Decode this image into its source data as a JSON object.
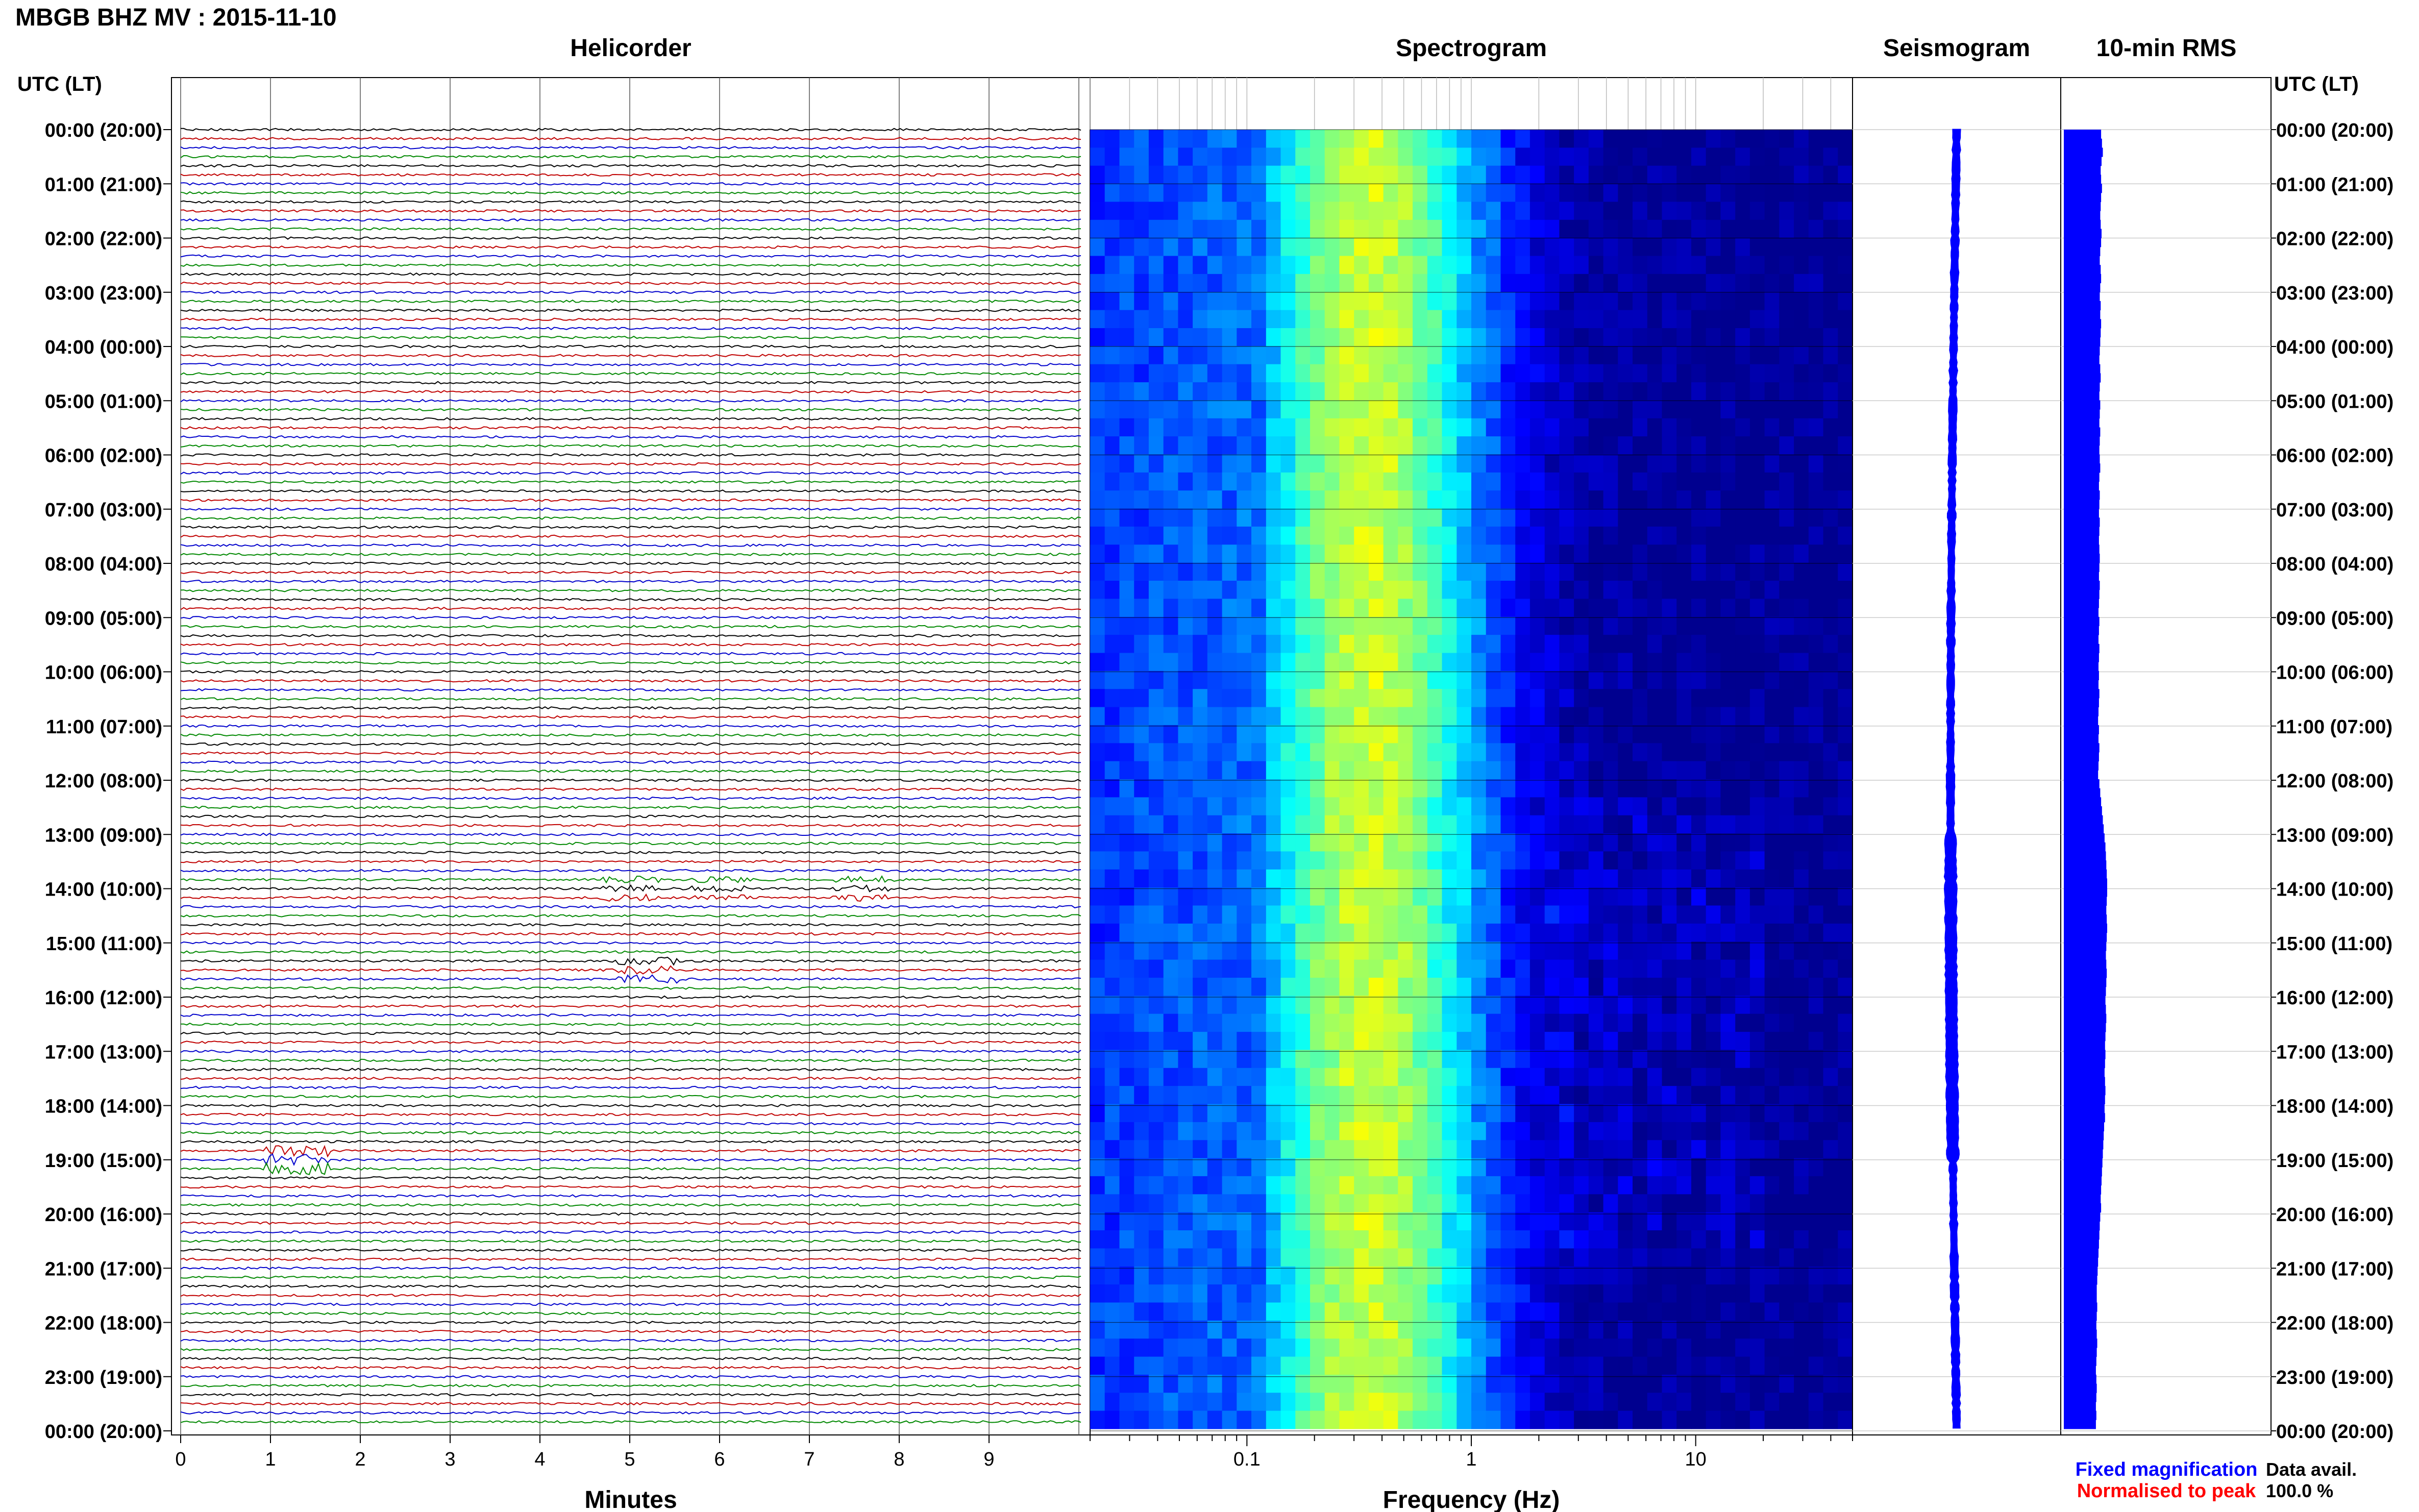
{
  "header": {
    "title": "MBGB BHZ MV : 2015-11-10"
  },
  "panels": {
    "helicorder": "Helicorder",
    "spectrogram": "Spectrogram",
    "seismogram": "Seismogram",
    "rms": "10-min RMS"
  },
  "axes": {
    "time_label": "UTC (LT)",
    "minutes_label": "Minutes",
    "frequency_label": "Frequency (Hz)"
  },
  "legend": {
    "fixed": "Fixed magnification",
    "normalised": "Normalised to peak",
    "fixed_color": "#0000ff",
    "normalised_color": "#ff0000"
  },
  "data_availability": {
    "label": "Data avail.",
    "value": "100.0 %"
  },
  "chart_data": {
    "type": "line",
    "time_ticks": [
      "00:00 (20:00)",
      "01:00 (21:00)",
      "02:00 (22:00)",
      "03:00 (23:00)",
      "04:00 (00:00)",
      "05:00 (01:00)",
      "06:00 (02:00)",
      "07:00 (03:00)",
      "08:00 (04:00)",
      "09:00 (05:00)",
      "10:00 (06:00)",
      "11:00 (07:00)",
      "12:00 (08:00)",
      "13:00 (09:00)",
      "14:00 (10:00)",
      "15:00 (11:00)",
      "16:00 (12:00)",
      "17:00 (13:00)",
      "18:00 (14:00)",
      "19:00 (15:00)",
      "20:00 (16:00)",
      "21:00 (17:00)",
      "22:00 (18:00)",
      "23:00 (19:00)",
      "00:00 (20:00)"
    ],
    "minute_ticks": [
      "0",
      "1",
      "2",
      "3",
      "4",
      "5",
      "6",
      "7",
      "8",
      "9"
    ],
    "frequency_ticks": [
      "0.1",
      "1",
      "10"
    ],
    "frequency_range_hz": [
      0.02,
      50
    ],
    "helicorder": {
      "trace_colors": [
        "#000000",
        "#c00000",
        "#0000cc",
        "#008800"
      ],
      "line_minutes": 10,
      "lines": 144,
      "events": [
        {
          "hour": 14.0,
          "minute": 5.0,
          "amp": 3.0
        },
        {
          "hour": 14.0,
          "minute": 6.0,
          "amp": 2.5
        },
        {
          "hour": 14.0,
          "minute": 7.6,
          "amp": 3.0
        },
        {
          "hour": 15.5,
          "minute": 5.2,
          "amp": 3.5
        },
        {
          "hour": 19.0,
          "minute": 1.3,
          "amp": 5.0
        }
      ]
    },
    "spectrogram_colormap": [
      "#00008f",
      "#0000ff",
      "#0080ff",
      "#00ffff",
      "#80ff80",
      "#ffff00"
    ],
    "seismogram_color": "#0000ff",
    "rms_color": "#0000ff",
    "rms_relative": [
      0.86,
      0.88,
      0.9,
      0.87,
      0.85,
      0.86,
      0.88,
      0.86,
      0.85,
      0.84,
      0.85,
      0.87,
      0.86,
      0.84,
      0.83,
      0.85,
      0.86,
      0.84,
      0.83,
      0.85,
      0.84,
      0.86,
      0.85,
      0.84,
      0.83,
      0.82,
      0.84,
      0.85,
      0.83,
      0.82,
      0.84,
      0.83,
      0.82,
      0.84,
      0.83,
      0.82,
      0.83,
      0.84,
      0.82,
      0.81,
      0.83,
      0.82,
      0.81,
      0.83,
      0.82,
      0.81,
      0.82,
      0.83,
      0.82,
      0.81,
      0.83,
      0.82,
      0.81,
      0.8,
      0.82,
      0.81,
      0.8,
      0.82,
      0.81,
      0.8,
      0.81,
      0.8,
      0.82,
      0.81,
      0.8,
      0.79,
      0.81,
      0.8,
      0.82,
      0.81,
      0.8,
      0.79,
      0.82,
      0.84,
      0.86,
      0.88,
      0.9,
      0.92,
      0.94,
      0.96,
      0.97,
      0.98,
      0.99,
      1.0,
      1.0,
      0.99,
      0.98,
      0.99,
      1.0,
      0.99,
      0.98,
      0.97,
      0.98,
      0.99,
      0.98,
      0.97,
      0.96,
      0.97,
      0.98,
      0.97,
      0.96,
      0.95,
      0.96,
      0.95,
      0.94,
      0.95,
      0.96,
      0.95,
      0.94,
      0.95,
      0.93,
      0.92,
      0.91,
      0.9,
      0.89,
      0.88,
      0.87,
      0.86,
      0.85,
      0.86,
      0.84,
      0.83,
      0.82,
      0.81,
      0.8,
      0.79,
      0.78,
      0.77,
      0.76,
      0.76,
      0.77,
      0.76,
      0.75,
      0.76,
      0.77,
      0.76,
      0.75,
      0.74,
      0.75,
      0.76,
      0.75,
      0.74,
      0.75,
      0.74
    ]
  }
}
